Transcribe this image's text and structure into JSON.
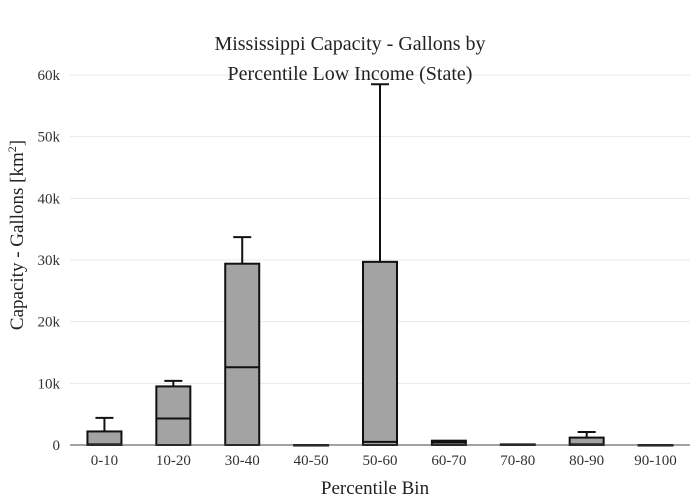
{
  "chart_data": {
    "type": "box",
    "title_lines": [
      "Mississippi Capacity - Gallons by",
      "Percentile Low Income (State)"
    ],
    "xlabel": "Percentile Bin",
    "ylabel_main": "Capacity - Gallons  [km",
    "ylabel_sup": "2",
    "ylabel_end": "]",
    "ylim": [
      0,
      60000
    ],
    "yticks": [
      0,
      10000,
      20000,
      30000,
      40000,
      50000,
      60000
    ],
    "ytick_labels": [
      "0",
      "10k",
      "20k",
      "30k",
      "40k",
      "50k",
      "60k"
    ],
    "grid": true,
    "categories": [
      "0-10",
      "10-20",
      "30-40",
      "40-50",
      "50-60",
      "60-70",
      "70-80",
      "80-90",
      "90-100"
    ],
    "boxes": [
      {
        "category": "0-10",
        "q1": 0,
        "median": 100,
        "q3": 2200,
        "upper": 4400,
        "lower": 0
      },
      {
        "category": "10-20",
        "q1": 0,
        "median": 4300,
        "q3": 9500,
        "upper": 10400,
        "lower": 0
      },
      {
        "category": "30-40",
        "q1": 0,
        "median": 12600,
        "q3": 29400,
        "upper": 33700,
        "lower": 0
      },
      {
        "category": "40-50",
        "q1": 0,
        "median": 0,
        "q3": 0,
        "upper": 0,
        "lower": 0
      },
      {
        "category": "50-60",
        "q1": 0,
        "median": 500,
        "q3": 29700,
        "upper": 58500,
        "lower": 0
      },
      {
        "category": "60-70",
        "q1": 0,
        "median": 400,
        "q3": 700,
        "upper": 700,
        "lower": 0
      },
      {
        "category": "70-80",
        "q1": 0,
        "median": 50,
        "q3": 100,
        "upper": 100,
        "lower": 0
      },
      {
        "category": "80-90",
        "q1": 0,
        "median": 100,
        "q3": 1200,
        "upper": 2100,
        "lower": 0
      },
      {
        "category": "90-100",
        "q1": 0,
        "median": 0,
        "q3": 0,
        "upper": 0,
        "lower": 0
      }
    ]
  }
}
